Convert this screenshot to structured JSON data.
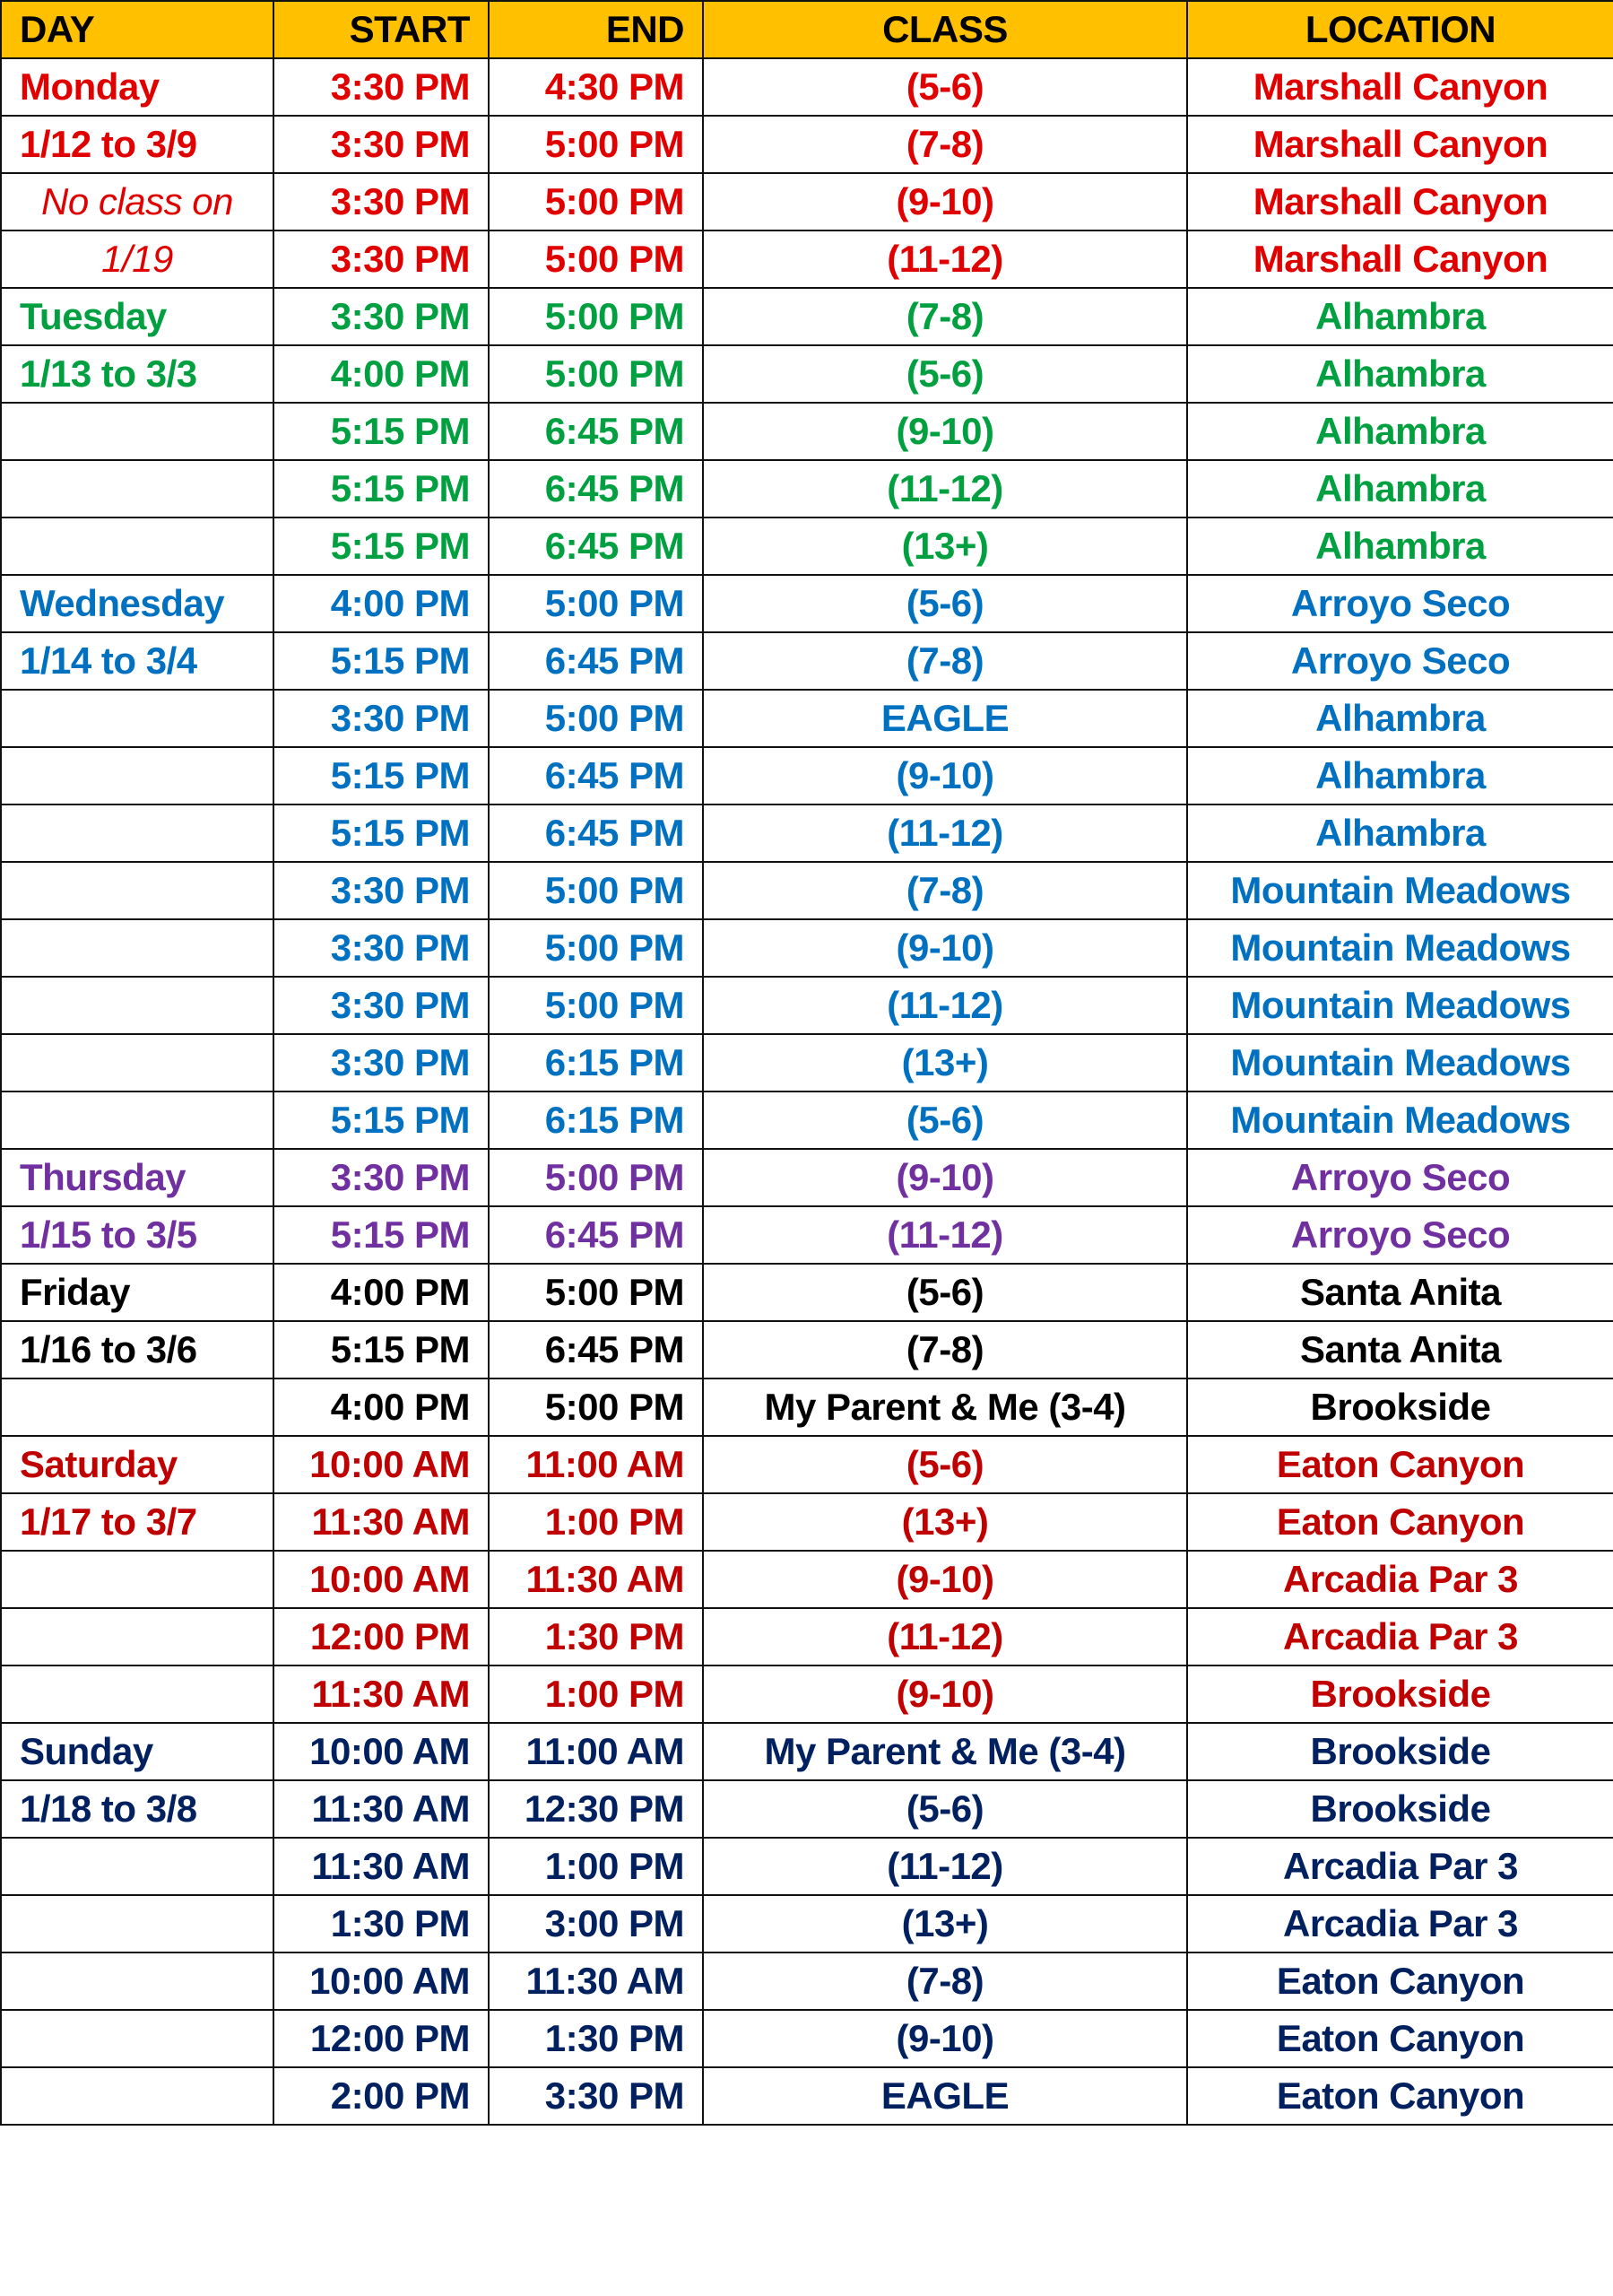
{
  "colors": {
    "header_bg": "#ffc000",
    "monday": "#e00000",
    "tuesday": "#00a040",
    "wednesday": "#0070c0",
    "thursday": "#7030a0",
    "friday": "#000000",
    "saturday": "#c00000",
    "sunday": "#002060"
  },
  "headers": [
    "DAY",
    "START",
    "END",
    "CLASS",
    "LOCATION"
  ],
  "rows": [
    {
      "group": "monday",
      "day": "Monday",
      "start": "3:30 PM",
      "end": "4:30 PM",
      "class": "(5-6)",
      "location": "Marshall Canyon"
    },
    {
      "group": "monday",
      "day": "1/12 to 3/9",
      "start": "3:30 PM",
      "end": "5:00 PM",
      "class": "(7-8)",
      "location": "Marshall Canyon"
    },
    {
      "group": "monday",
      "day": "No class on",
      "italic": true,
      "start": "3:30 PM",
      "end": "5:00 PM",
      "class": "(9-10)",
      "location": "Marshall Canyon"
    },
    {
      "group": "monday",
      "day": "1/19",
      "italic": true,
      "start": "3:30 PM",
      "end": "5:00 PM",
      "class": "(11-12)",
      "location": "Marshall Canyon"
    },
    {
      "group": "tuesday",
      "day": "Tuesday",
      "start": "3:30 PM",
      "end": "5:00 PM",
      "class": "(7-8)",
      "location": "Alhambra"
    },
    {
      "group": "tuesday",
      "day": "1/13 to 3/3",
      "start": "4:00 PM",
      "end": "5:00 PM",
      "class": "(5-6)",
      "location": "Alhambra"
    },
    {
      "group": "tuesday",
      "day": "",
      "start": "5:15 PM",
      "end": "6:45 PM",
      "class": "(9-10)",
      "location": "Alhambra"
    },
    {
      "group": "tuesday",
      "day": "",
      "start": "5:15 PM",
      "end": "6:45 PM",
      "class": "(11-12)",
      "location": "Alhambra"
    },
    {
      "group": "tuesday",
      "day": "",
      "start": "5:15 PM",
      "end": "6:45 PM",
      "class": "(13+)",
      "location": "Alhambra"
    },
    {
      "group": "wednesday",
      "day": "Wednesday",
      "start": "4:00 PM",
      "end": "5:00 PM",
      "class": "(5-6)",
      "location": "Arroyo Seco"
    },
    {
      "group": "wednesday",
      "day": "1/14 to 3/4",
      "start": "5:15 PM",
      "end": "6:45 PM",
      "class": "(7-8)",
      "location": "Arroyo Seco"
    },
    {
      "group": "wednesday",
      "day": "",
      "start": "3:30 PM",
      "end": "5:00 PM",
      "class": "EAGLE",
      "location": "Alhambra"
    },
    {
      "group": "wednesday",
      "day": "",
      "start": "5:15 PM",
      "end": "6:45 PM",
      "class": "(9-10)",
      "location": "Alhambra"
    },
    {
      "group": "wednesday",
      "day": "",
      "start": "5:15 PM",
      "end": "6:45 PM",
      "class": "(11-12)",
      "location": "Alhambra"
    },
    {
      "group": "wednesday",
      "day": "",
      "start": "3:30 PM",
      "end": "5:00 PM",
      "class": "(7-8)",
      "location": "Mountain Meadows"
    },
    {
      "group": "wednesday",
      "day": "",
      "start": "3:30 PM",
      "end": "5:00 PM",
      "class": "(9-10)",
      "location": "Mountain Meadows"
    },
    {
      "group": "wednesday",
      "day": "",
      "start": "3:30 PM",
      "end": "5:00 PM",
      "class": "(11-12)",
      "location": "Mountain Meadows"
    },
    {
      "group": "wednesday",
      "day": "",
      "start": "3:30 PM",
      "end": "6:15 PM",
      "class": "(13+)",
      "location": "Mountain Meadows"
    },
    {
      "group": "wednesday",
      "day": "",
      "start": "5:15 PM",
      "end": "6:15 PM",
      "class": "(5-6)",
      "location": "Mountain Meadows"
    },
    {
      "group": "thursday",
      "day": "Thursday",
      "start": "3:30 PM",
      "end": "5:00 PM",
      "class": "(9-10)",
      "location": "Arroyo Seco"
    },
    {
      "group": "thursday",
      "day": "1/15 to 3/5",
      "start": "5:15 PM",
      "end": "6:45 PM",
      "class": "(11-12)",
      "location": "Arroyo Seco"
    },
    {
      "group": "friday",
      "day": "Friday",
      "start": "4:00 PM",
      "end": "5:00 PM",
      "class": "(5-6)",
      "location": "Santa Anita"
    },
    {
      "group": "friday",
      "day": "1/16 to 3/6",
      "start": "5:15 PM",
      "end": "6:45 PM",
      "class": "(7-8)",
      "location": "Santa Anita"
    },
    {
      "group": "friday",
      "day": "",
      "start": "4:00 PM",
      "end": "5:00 PM",
      "class": "My Parent & Me (3-4)",
      "location": "Brookside"
    },
    {
      "group": "saturday",
      "day": "Saturday",
      "start": "10:00 AM",
      "end": "11:00 AM",
      "class": "(5-6)",
      "location": "Eaton Canyon"
    },
    {
      "group": "saturday",
      "day": "1/17 to 3/7",
      "start": "11:30 AM",
      "end": "1:00 PM",
      "class": "(13+)",
      "location": "Eaton Canyon"
    },
    {
      "group": "saturday",
      "day": "",
      "start": "10:00 AM",
      "end": "11:30 AM",
      "class": "(9-10)",
      "location": "Arcadia Par 3"
    },
    {
      "group": "saturday",
      "day": "",
      "start": "12:00 PM",
      "end": "1:30 PM",
      "class": "(11-12)",
      "location": "Arcadia Par 3"
    },
    {
      "group": "saturday",
      "day": "",
      "start": "11:30 AM",
      "end": "1:00 PM",
      "class": "(9-10)",
      "location": "Brookside"
    },
    {
      "group": "sunday",
      "day": "Sunday",
      "start": "10:00 AM",
      "end": "11:00 AM",
      "class": "My Parent & Me (3-4)",
      "location": "Brookside"
    },
    {
      "group": "sunday",
      "day": "1/18 to 3/8",
      "start": "11:30 AM",
      "end": "12:30 PM",
      "class": "(5-6)",
      "location": "Brookside"
    },
    {
      "group": "sunday",
      "day": "",
      "start": "11:30 AM",
      "end": "1:00 PM",
      "class": "(11-12)",
      "location": "Arcadia Par 3"
    },
    {
      "group": "sunday",
      "day": "",
      "start": "1:30 PM",
      "end": "3:00 PM",
      "class": "(13+)",
      "location": "Arcadia Par 3"
    },
    {
      "group": "sunday",
      "day": "",
      "start": "10:00 AM",
      "end": "11:30 AM",
      "class": "(7-8)",
      "location": "Eaton Canyon"
    },
    {
      "group": "sunday",
      "day": "",
      "start": "12:00 PM",
      "end": "1:30 PM",
      "class": "(9-10)",
      "location": "Eaton Canyon"
    },
    {
      "group": "sunday",
      "day": "",
      "start": "2:00 PM",
      "end": "3:30 PM",
      "class": "EAGLE",
      "location": "Eaton Canyon"
    }
  ]
}
